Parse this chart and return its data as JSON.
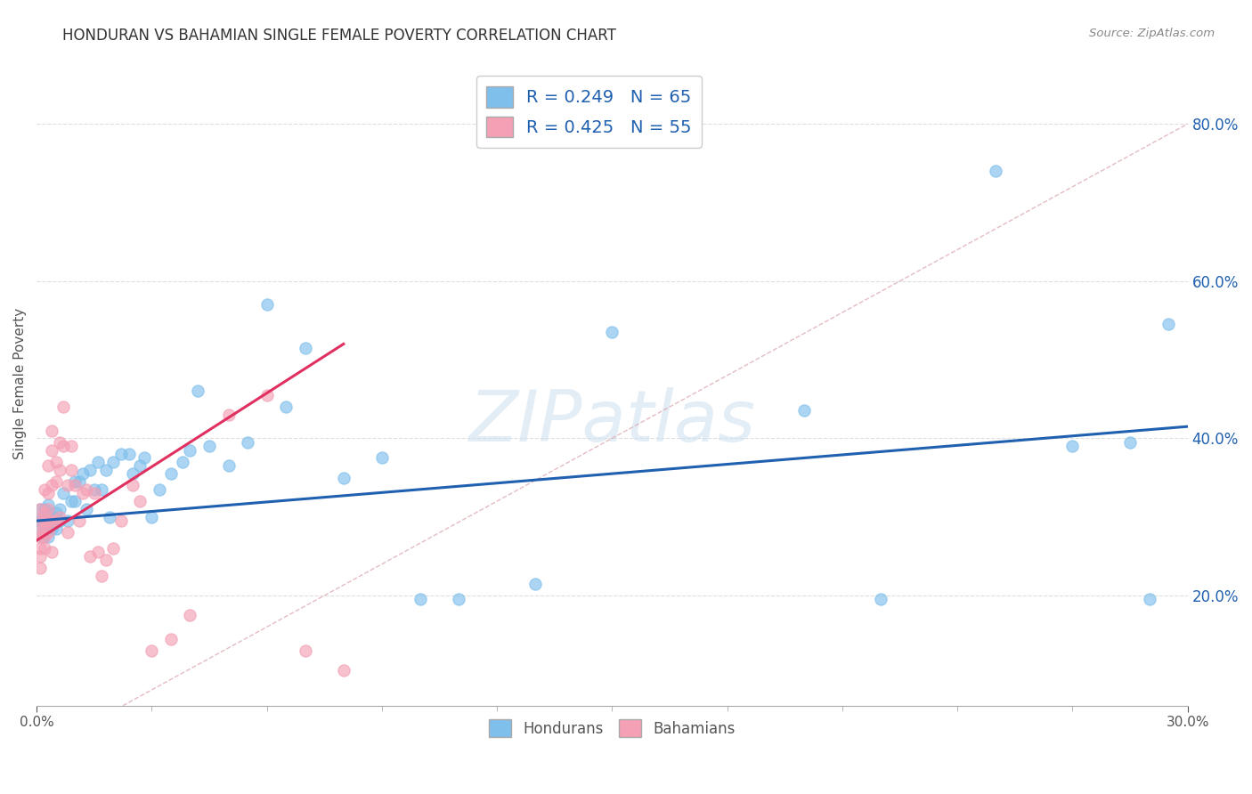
{
  "title": "HONDURAN VS BAHAMIAN SINGLE FEMALE POVERTY CORRELATION CHART",
  "source": "Source: ZipAtlas.com",
  "ylabel": "Single Female Poverty",
  "legend_label1": "Hondurans",
  "legend_label2": "Bahamians",
  "r1": 0.249,
  "n1": 65,
  "r2": 0.425,
  "n2": 55,
  "color_blue": "#7fbfeb",
  "color_pink": "#f4a0b5",
  "color_blue_line": "#2060b0",
  "color_pink_line": "#e03060",
  "color_diag": "#d8a0a8",
  "xlim": [
    0.0,
    0.3
  ],
  "ylim": [
    0.06,
    0.88
  ],
  "yticks": [
    0.2,
    0.4,
    0.6,
    0.8
  ],
  "watermark": "ZIPatlas",
  "blue_line_x0": 0.0,
  "blue_line_x1": 0.3,
  "blue_line_y0": 0.295,
  "blue_line_y1": 0.415,
  "pink_line_x0": 0.0,
  "pink_line_x1": 0.08,
  "pink_line_y0": 0.27,
  "pink_line_y1": 0.52,
  "blue_scatter_x": [
    0.001,
    0.001,
    0.001,
    0.0015,
    0.0015,
    0.002,
    0.002,
    0.002,
    0.002,
    0.003,
    0.003,
    0.003,
    0.003,
    0.004,
    0.004,
    0.004,
    0.005,
    0.005,
    0.006,
    0.006,
    0.007,
    0.008,
    0.009,
    0.01,
    0.01,
    0.011,
    0.012,
    0.013,
    0.014,
    0.015,
    0.016,
    0.017,
    0.018,
    0.019,
    0.02,
    0.022,
    0.024,
    0.025,
    0.027,
    0.028,
    0.03,
    0.032,
    0.035,
    0.038,
    0.04,
    0.042,
    0.045,
    0.05,
    0.055,
    0.06,
    0.065,
    0.07,
    0.08,
    0.09,
    0.1,
    0.11,
    0.13,
    0.15,
    0.2,
    0.22,
    0.25,
    0.27,
    0.285,
    0.29,
    0.295
  ],
  "blue_scatter_y": [
    0.295,
    0.31,
    0.285,
    0.3,
    0.275,
    0.295,
    0.31,
    0.28,
    0.29,
    0.285,
    0.305,
    0.275,
    0.315,
    0.3,
    0.285,
    0.295,
    0.305,
    0.285,
    0.31,
    0.295,
    0.33,
    0.295,
    0.32,
    0.345,
    0.32,
    0.345,
    0.355,
    0.31,
    0.36,
    0.335,
    0.37,
    0.335,
    0.36,
    0.3,
    0.37,
    0.38,
    0.38,
    0.355,
    0.365,
    0.375,
    0.3,
    0.335,
    0.355,
    0.37,
    0.385,
    0.46,
    0.39,
    0.365,
    0.395,
    0.57,
    0.44,
    0.515,
    0.35,
    0.375,
    0.195,
    0.195,
    0.215,
    0.535,
    0.435,
    0.195,
    0.74,
    0.39,
    0.395,
    0.195,
    0.545
  ],
  "pink_scatter_x": [
    0.001,
    0.001,
    0.001,
    0.001,
    0.001,
    0.001,
    0.001,
    0.002,
    0.002,
    0.002,
    0.002,
    0.002,
    0.002,
    0.003,
    0.003,
    0.003,
    0.003,
    0.003,
    0.004,
    0.004,
    0.004,
    0.004,
    0.004,
    0.005,
    0.005,
    0.005,
    0.006,
    0.006,
    0.006,
    0.007,
    0.007,
    0.008,
    0.008,
    0.009,
    0.009,
    0.01,
    0.011,
    0.012,
    0.013,
    0.014,
    0.015,
    0.016,
    0.017,
    0.018,
    0.02,
    0.022,
    0.025,
    0.027,
    0.03,
    0.035,
    0.04,
    0.05,
    0.06,
    0.07,
    0.08
  ],
  "pink_scatter_y": [
    0.275,
    0.295,
    0.26,
    0.31,
    0.235,
    0.28,
    0.25,
    0.335,
    0.285,
    0.295,
    0.305,
    0.26,
    0.275,
    0.365,
    0.33,
    0.31,
    0.28,
    0.295,
    0.41,
    0.385,
    0.34,
    0.295,
    0.255,
    0.37,
    0.345,
    0.295,
    0.395,
    0.36,
    0.3,
    0.44,
    0.39,
    0.34,
    0.28,
    0.39,
    0.36,
    0.34,
    0.295,
    0.33,
    0.335,
    0.25,
    0.33,
    0.255,
    0.225,
    0.245,
    0.26,
    0.295,
    0.34,
    0.32,
    0.13,
    0.145,
    0.175,
    0.43,
    0.455,
    0.13,
    0.105
  ]
}
